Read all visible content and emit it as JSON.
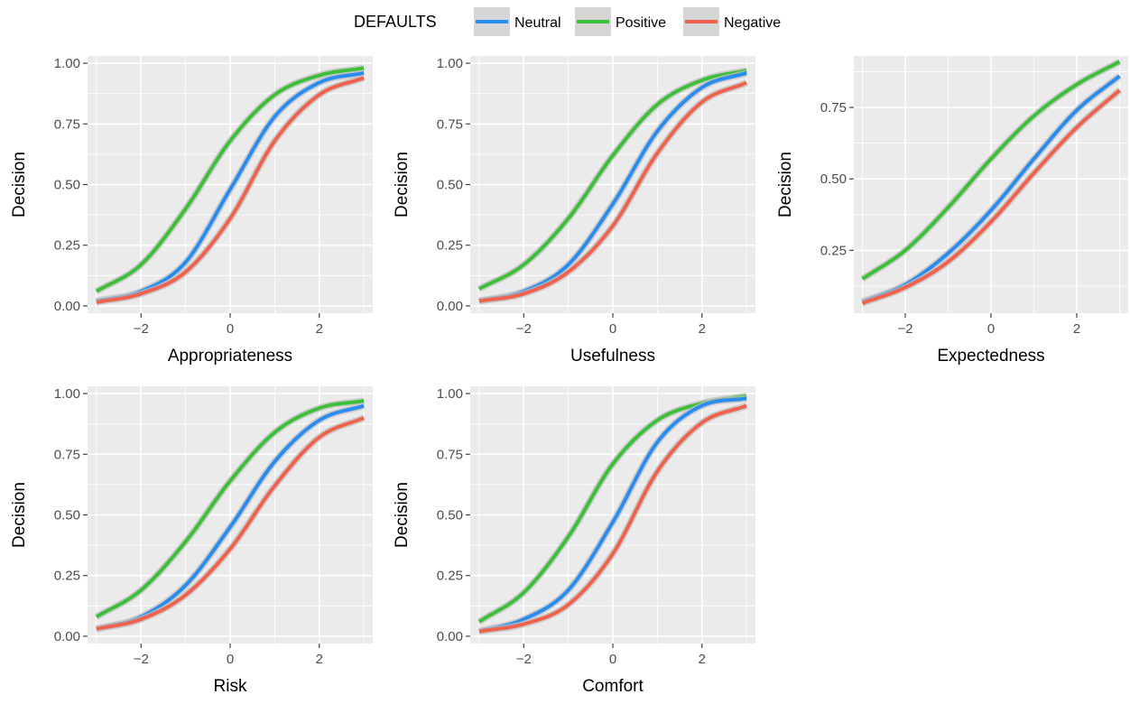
{
  "legend": {
    "title": "DEFAULTS",
    "placement": "top",
    "items": [
      {
        "label": "Neutral",
        "color": "#2b8cf0"
      },
      {
        "label": "Positive",
        "color": "#3ebf3a"
      },
      {
        "label": "Negative",
        "color": "#f0624d"
      }
    ]
  },
  "colors": {
    "panel_bg": "#ebebeb",
    "grid": "#ffffff",
    "ribbon": "#bdbdbd"
  },
  "chart_data": [
    {
      "type": "line",
      "xlabel": "Appropriateness",
      "ylabel": "Decision",
      "xlim": [
        -3.2,
        3.2
      ],
      "ylim": [
        -0.03,
        1.03
      ],
      "x_ticks": [
        -2,
        0,
        2
      ],
      "x_tick_labels": [
        "−2",
        "0",
        "2"
      ],
      "y_ticks": [
        0,
        0.25,
        0.5,
        0.75,
        1
      ],
      "y_tick_labels": [
        "0.00",
        "0.25",
        "0.50",
        "0.75",
        "1.00"
      ],
      "grid": true,
      "x": [
        -3,
        -2,
        -1,
        0,
        1,
        2,
        3
      ],
      "series": [
        {
          "name": "Neutral",
          "values": [
            0.02,
            0.06,
            0.18,
            0.48,
            0.78,
            0.92,
            0.96
          ]
        },
        {
          "name": "Positive",
          "values": [
            0.06,
            0.17,
            0.4,
            0.68,
            0.87,
            0.95,
            0.98
          ]
        },
        {
          "name": "Negative",
          "values": [
            0.015,
            0.05,
            0.14,
            0.36,
            0.68,
            0.87,
            0.94
          ]
        }
      ]
    },
    {
      "type": "line",
      "xlabel": "Usefulness",
      "ylabel": "Decision",
      "xlim": [
        -3.2,
        3.2
      ],
      "ylim": [
        -0.03,
        1.03
      ],
      "x_ticks": [
        -2,
        0,
        2
      ],
      "x_tick_labels": [
        "−2",
        "0",
        "2"
      ],
      "y_ticks": [
        0,
        0.25,
        0.5,
        0.75,
        1
      ],
      "y_tick_labels": [
        "0.00",
        "0.25",
        "0.50",
        "0.75",
        "1.00"
      ],
      "grid": true,
      "x": [
        -3,
        -2,
        -1,
        0,
        1,
        2,
        3
      ],
      "series": [
        {
          "name": "Neutral",
          "values": [
            0.02,
            0.06,
            0.17,
            0.42,
            0.72,
            0.9,
            0.96
          ]
        },
        {
          "name": "Positive",
          "values": [
            0.07,
            0.17,
            0.36,
            0.62,
            0.83,
            0.93,
            0.97
          ]
        },
        {
          "name": "Negative",
          "values": [
            0.02,
            0.05,
            0.14,
            0.33,
            0.63,
            0.84,
            0.92
          ]
        }
      ]
    },
    {
      "type": "line",
      "xlabel": "Expectedness",
      "ylabel": "Decision",
      "xlim": [
        -3.2,
        3.2
      ],
      "ylim": [
        0.03,
        0.93
      ],
      "x_ticks": [
        -2,
        0,
        2
      ],
      "x_tick_labels": [
        "−2",
        "0",
        "2"
      ],
      "y_ticks": [
        0.25,
        0.5,
        0.75
      ],
      "y_tick_labels": [
        "0.25",
        "0.50",
        "0.75"
      ],
      "grid": true,
      "x": [
        -3,
        -2,
        -1,
        0,
        1,
        2,
        3
      ],
      "series": [
        {
          "name": "Neutral",
          "values": [
            0.07,
            0.13,
            0.24,
            0.39,
            0.57,
            0.74,
            0.86
          ]
        },
        {
          "name": "Positive",
          "values": [
            0.15,
            0.25,
            0.4,
            0.57,
            0.72,
            0.83,
            0.91
          ]
        },
        {
          "name": "Negative",
          "values": [
            0.065,
            0.12,
            0.21,
            0.35,
            0.52,
            0.68,
            0.81
          ]
        }
      ]
    },
    {
      "type": "line",
      "xlabel": "Risk",
      "ylabel": "Decision",
      "xlim": [
        -3.2,
        3.2
      ],
      "ylim": [
        -0.03,
        1.03
      ],
      "x_ticks": [
        -2,
        0,
        2
      ],
      "x_tick_labels": [
        "−2",
        "0",
        "2"
      ],
      "y_ticks": [
        0,
        0.25,
        0.5,
        0.75,
        1
      ],
      "y_tick_labels": [
        "0.00",
        "0.25",
        "0.50",
        "0.75",
        "1.00"
      ],
      "grid": true,
      "x": [
        -3,
        -2,
        -1,
        0,
        1,
        2,
        3
      ],
      "series": [
        {
          "name": "Neutral",
          "values": [
            0.03,
            0.08,
            0.21,
            0.45,
            0.72,
            0.89,
            0.95
          ]
        },
        {
          "name": "Positive",
          "values": [
            0.08,
            0.19,
            0.39,
            0.64,
            0.84,
            0.94,
            0.97
          ]
        },
        {
          "name": "Negative",
          "values": [
            0.03,
            0.07,
            0.17,
            0.36,
            0.62,
            0.82,
            0.9
          ]
        }
      ]
    },
    {
      "type": "line",
      "xlabel": "Comfort",
      "ylabel": "Decision",
      "xlim": [
        -3.2,
        3.2
      ],
      "ylim": [
        -0.03,
        1.03
      ],
      "x_ticks": [
        -2,
        0,
        2
      ],
      "x_tick_labels": [
        "−2",
        "0",
        "2"
      ],
      "y_ticks": [
        0,
        0.25,
        0.5,
        0.75,
        1
      ],
      "y_tick_labels": [
        "0.00",
        "0.25",
        "0.50",
        "0.75",
        "1.00"
      ],
      "grid": true,
      "x": [
        -3,
        -2,
        -1,
        0,
        1,
        2,
        3
      ],
      "series": [
        {
          "name": "Neutral",
          "values": [
            0.02,
            0.07,
            0.19,
            0.47,
            0.8,
            0.95,
            0.98
          ]
        },
        {
          "name": "Positive",
          "values": [
            0.06,
            0.18,
            0.41,
            0.71,
            0.89,
            0.96,
            0.99
          ]
        },
        {
          "name": "Negative",
          "values": [
            0.02,
            0.05,
            0.13,
            0.34,
            0.68,
            0.88,
            0.95
          ]
        }
      ]
    }
  ]
}
